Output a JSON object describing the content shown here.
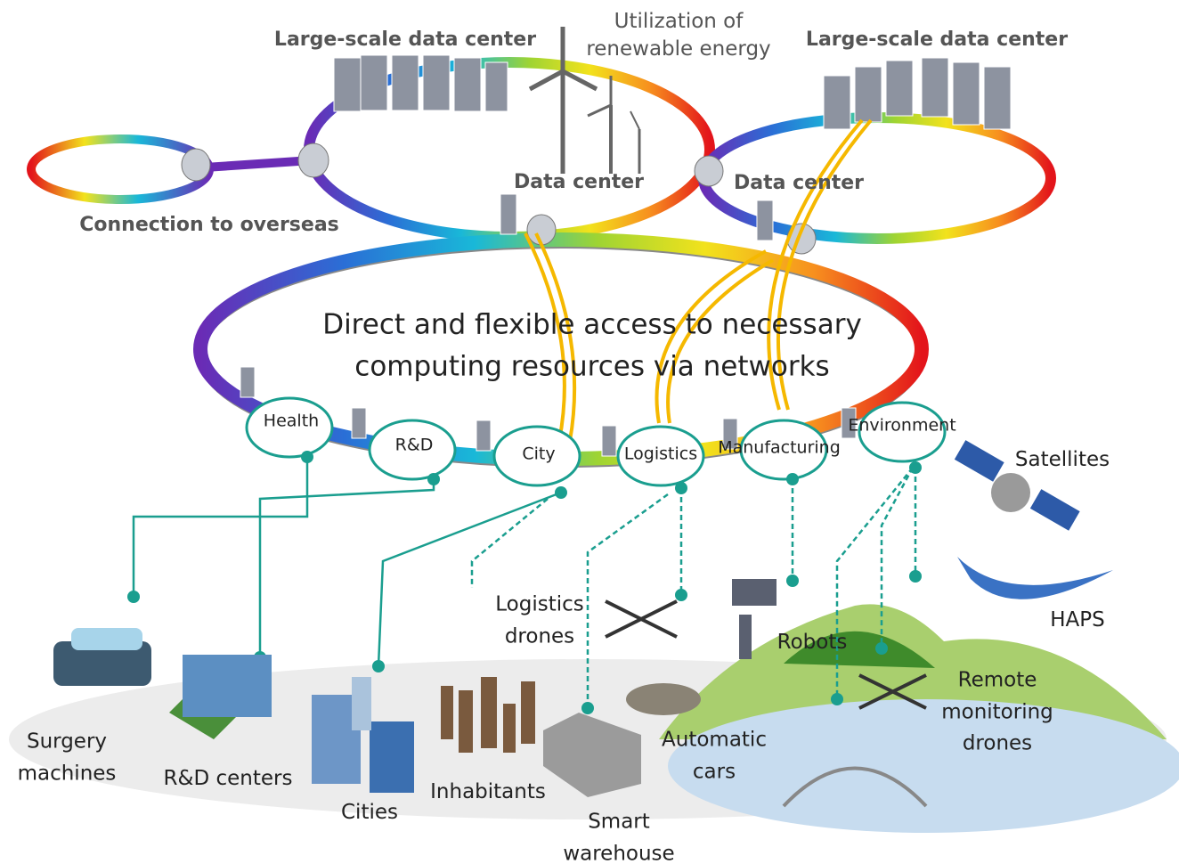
{
  "network": {
    "data_center_left": "Large-scale data center",
    "data_center_right": "Large-scale data center",
    "renewable": "Utilization of renewable energy",
    "dc_small_left": "Data center",
    "dc_small_right": "Data center",
    "overseas": "Connection to overseas",
    "message": "Direct and flexible access to necessary computing resources via networks"
  },
  "domains": [
    "Health",
    "R&D",
    "City",
    "Logistics",
    "Manufacturing",
    "Environment"
  ],
  "devices": {
    "satellites": "Satellites",
    "haps": "HAPS",
    "logistics_drones": "Logistics drones",
    "robots": "Robots",
    "remote_drones": "Remote monitoring drones",
    "cars": "Automatic cars",
    "surgery": "Surgery machines",
    "rnd_centers": "R&D centers",
    "cities": "Cities",
    "inhabitants": "Inhabitants",
    "warehouse": "Smart warehouse"
  }
}
